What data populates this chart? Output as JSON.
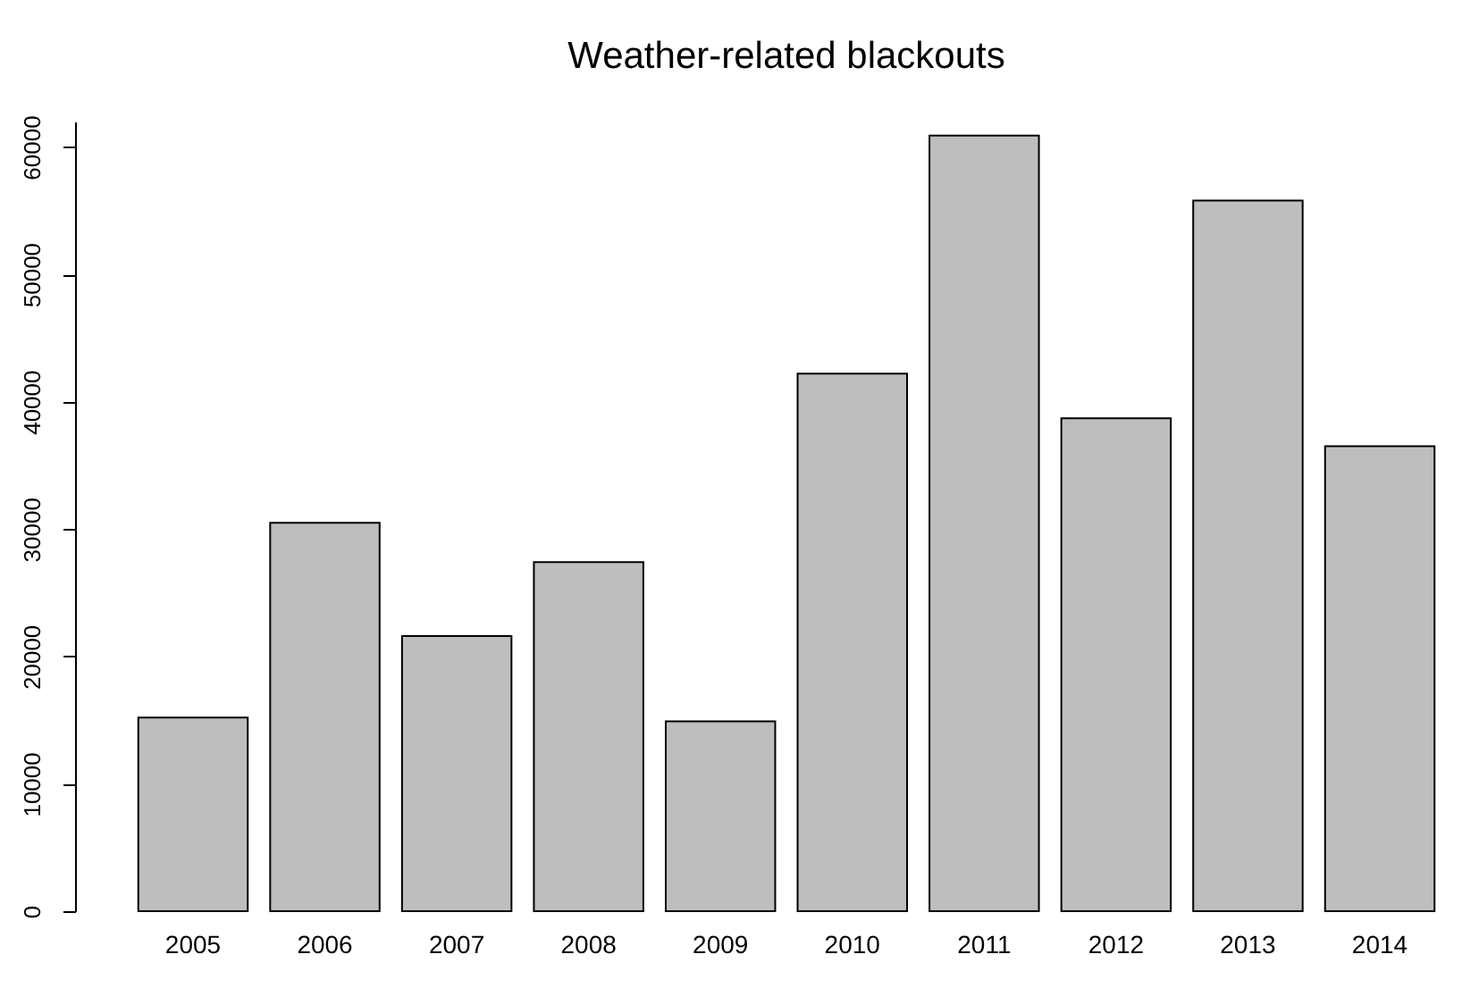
{
  "chart_data": {
    "type": "bar",
    "title": "Weather-related blackouts",
    "categories": [
      "2005",
      "2006",
      "2007",
      "2008",
      "2009",
      "2010",
      "2011",
      "2012",
      "2013",
      "2014"
    ],
    "values": [
      15200,
      30500,
      21600,
      27400,
      14900,
      42200,
      60900,
      38700,
      55800,
      36500
    ],
    "color": "#bebebe",
    "ylim": [
      0,
      62000
    ],
    "yticks": [
      0,
      10000,
      20000,
      30000,
      40000,
      50000,
      60000
    ],
    "grid": false
  }
}
